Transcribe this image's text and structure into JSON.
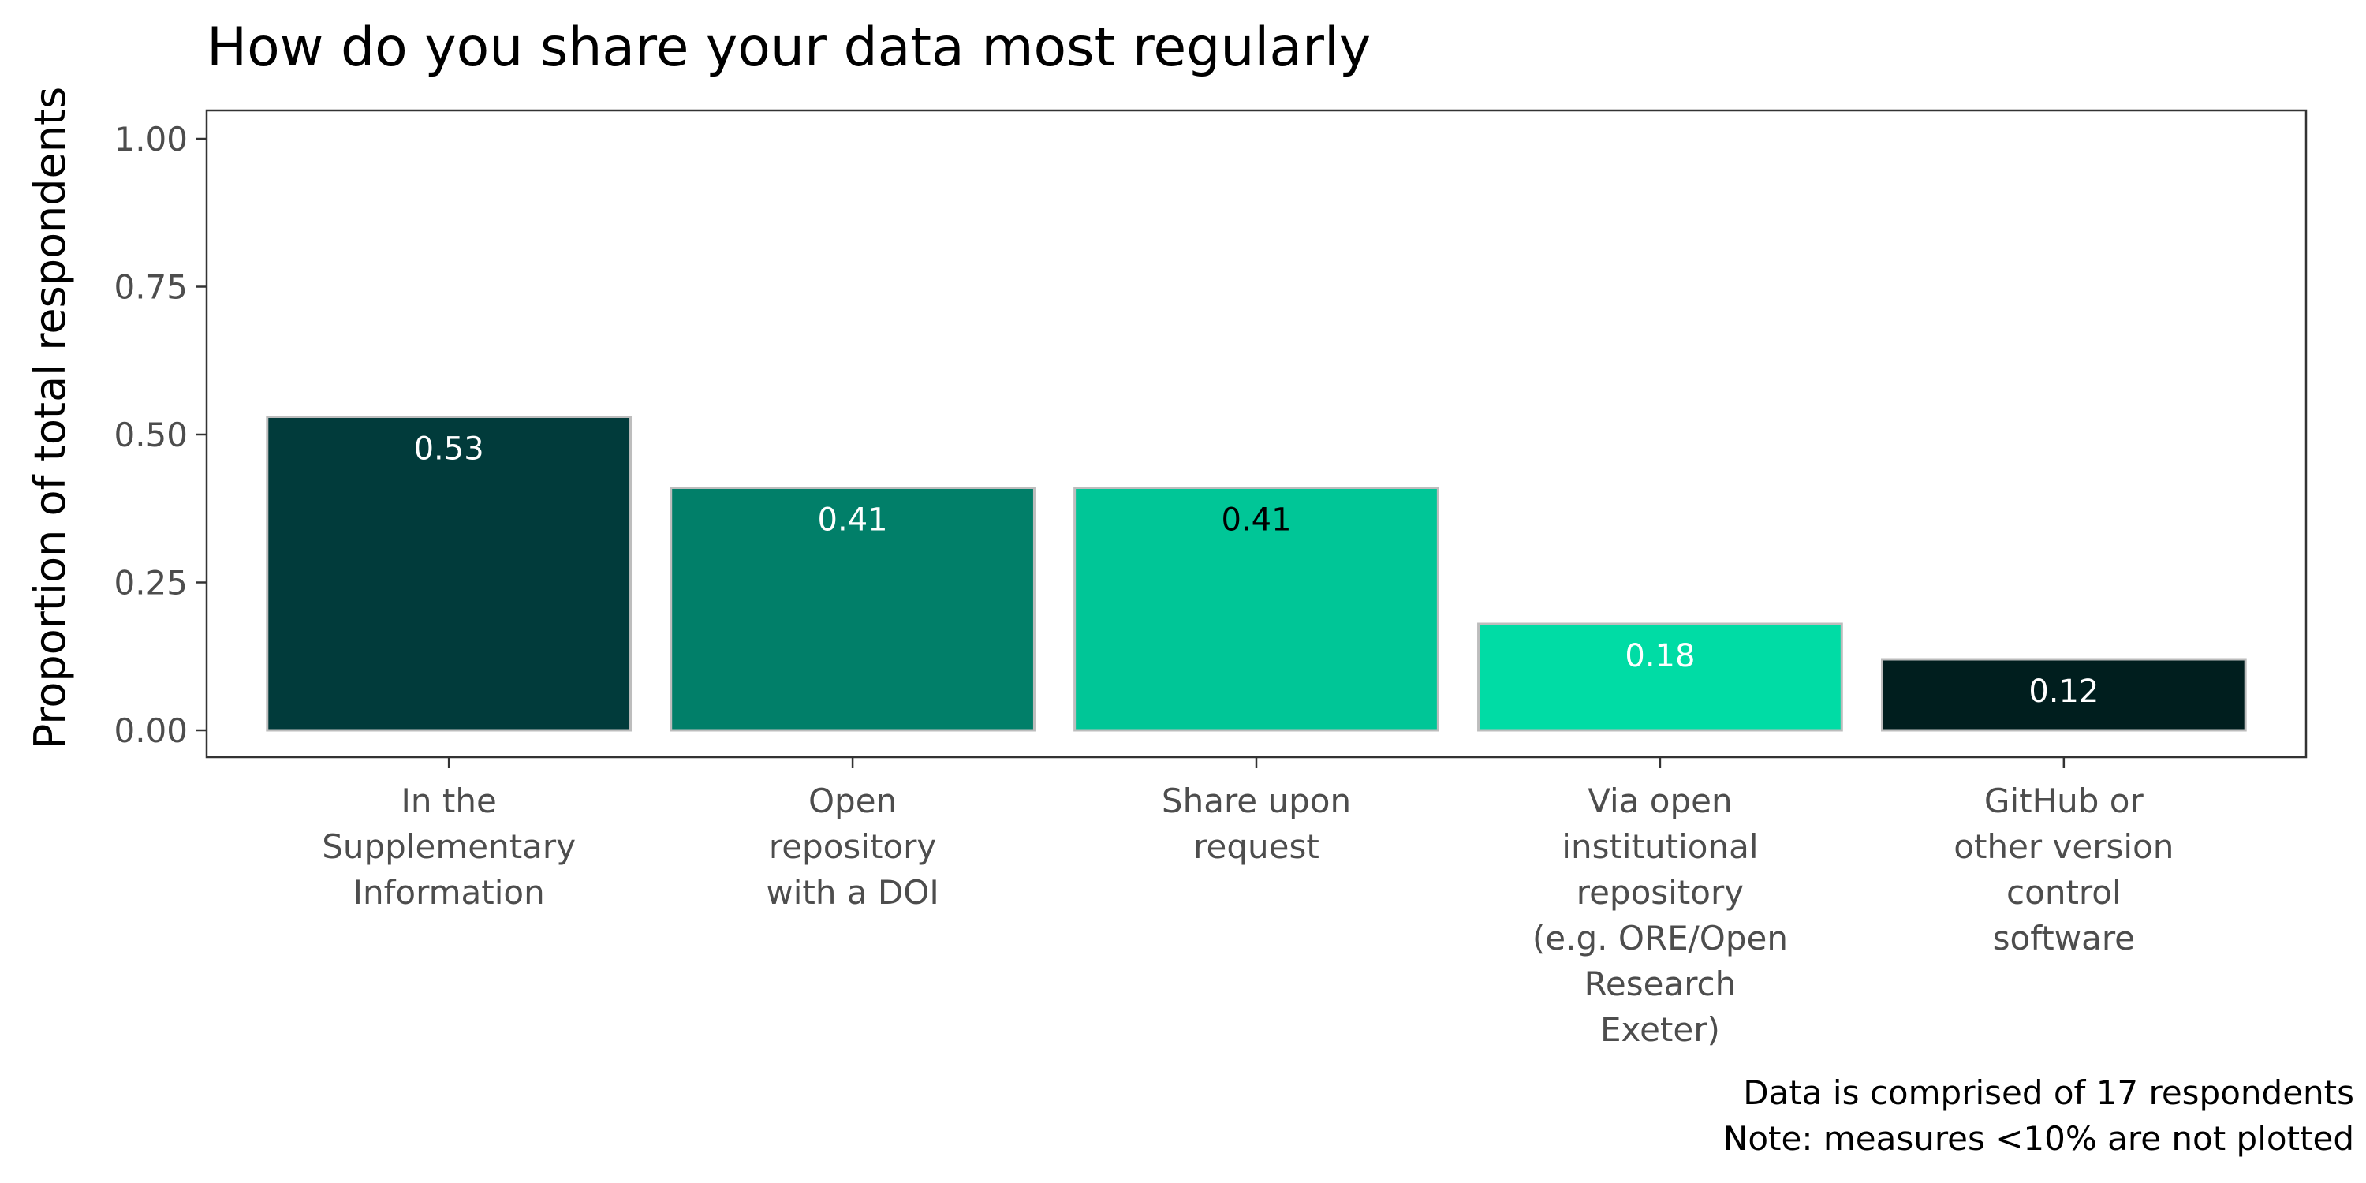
{
  "chart_data": {
    "type": "bar",
    "title": "How do you share your data most regularly",
    "xlabel": "",
    "ylabel": "Proportion of total respondents",
    "ylim": [
      0,
      1
    ],
    "yticks": [
      "0.00",
      "0.25",
      "0.50",
      "0.75",
      "1.00"
    ],
    "grid": false,
    "legend": "none",
    "categories": [
      [
        "In the",
        "Supplementary",
        "Information"
      ],
      [
        "Open",
        "repository",
        "with a DOI"
      ],
      [
        "Share upon",
        "request"
      ],
      [
        "Via open",
        "institutional",
        "repository",
        "(e.g. ORE/Open",
        "Research",
        "Exeter)"
      ],
      [
        "GitHub or",
        "other version",
        "control",
        "software"
      ]
    ],
    "values": [
      0.53,
      0.41,
      0.41,
      0.18,
      0.12
    ],
    "value_labels": [
      "0.53",
      "0.41",
      "0.41",
      "0.18",
      "0.12"
    ],
    "colors": [
      "#013b3b",
      "#017f69",
      "#00c697",
      "#00dca5",
      "#001e1e"
    ],
    "label_colors": [
      "#ffffff",
      "#ffffff",
      "#000000",
      "#ffffff",
      "#ffffff"
    ],
    "bar_outline": "#bdbdbd",
    "caption": [
      "Data is comprised of 17 respondents",
      "Note: measures <10% are not plotted"
    ]
  }
}
